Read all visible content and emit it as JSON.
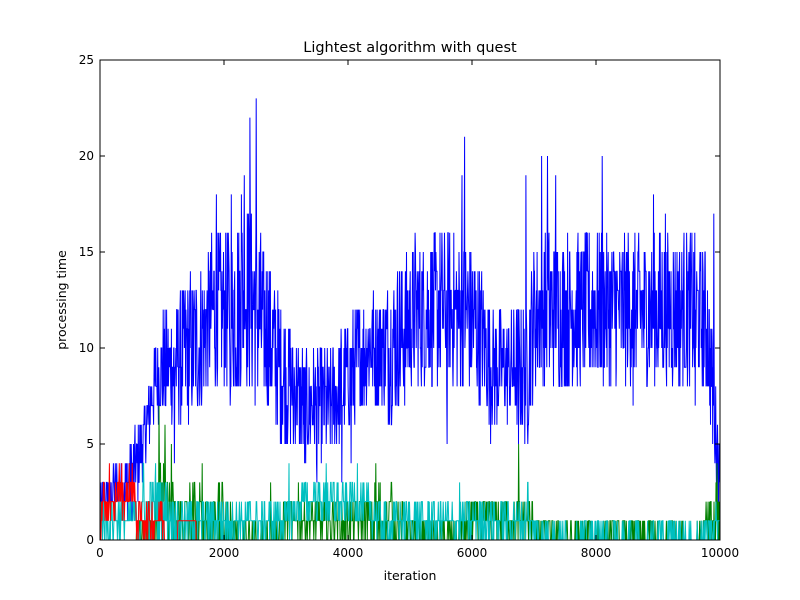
{
  "chart_data": {
    "type": "line",
    "title": "Lightest algorithm with quest",
    "xlabel": "iteration",
    "ylabel": "processing time",
    "xlim": [
      0,
      10000
    ],
    "ylim": [
      0,
      25
    ],
    "x_ticks": [
      "0",
      "2000",
      "4000",
      "6000",
      "8000",
      "10000"
    ],
    "y_ticks": [
      "0",
      "5",
      "10",
      "15",
      "20",
      "25"
    ],
    "grid": false,
    "legend": "none",
    "series": [
      {
        "color": "#0000ff",
        "x": [
          0,
          300,
          500,
          700,
          850,
          1000,
          1200,
          1400,
          1600,
          1800,
          2000,
          2200,
          2350,
          2500,
          2700,
          2900,
          3100,
          3300,
          3500,
          3700,
          3900,
          4100,
          4300,
          4500,
          4700,
          4900,
          5100,
          5300,
          5500,
          5700,
          5900,
          6100,
          6300,
          6500,
          6700,
          6900,
          7000,
          7200,
          7400,
          7600,
          7800,
          8000,
          8200,
          8400,
          8600,
          8800,
          9000,
          9200,
          9400,
          9600,
          9800,
          10000
        ],
        "y": [
          2,
          3,
          3,
          5,
          8,
          9,
          9,
          10,
          10,
          12,
          12,
          12,
          13,
          12,
          11,
          9,
          8,
          7,
          7,
          7,
          8,
          9,
          10,
          10,
          10,
          11,
          12,
          12,
          12,
          12,
          12,
          11,
          9,
          9,
          9,
          9,
          12,
          12,
          12,
          12,
          12,
          12,
          12,
          12,
          12,
          12,
          12,
          12,
          12,
          12,
          11,
          3
        ],
        "spread": [
          1,
          1,
          2,
          2,
          2,
          3,
          3,
          4,
          4,
          4,
          4,
          5,
          5,
          5,
          4,
          4,
          3,
          3,
          3,
          3,
          3,
          3,
          3,
          3,
          4,
          4,
          4,
          4,
          4,
          4,
          4,
          4,
          3,
          3,
          3,
          4,
          4,
          4,
          4,
          4,
          4,
          4,
          4,
          4,
          4,
          4,
          4,
          4,
          4,
          4,
          4,
          2
        ],
        "peaks": [
          [
            2420,
            22
          ],
          [
            2520,
            23
          ],
          [
            2330,
            19
          ],
          [
            2280,
            18
          ],
          [
            5880,
            21
          ],
          [
            5840,
            19
          ],
          [
            6870,
            19
          ],
          [
            7120,
            20
          ],
          [
            7220,
            20
          ],
          [
            7350,
            19
          ],
          [
            8100,
            20
          ],
          [
            8930,
            18
          ],
          [
            9120,
            17
          ],
          [
            9900,
            17
          ],
          [
            2120,
            18
          ],
          [
            1880,
            18
          ]
        ],
        "valleys": [
          [
            3500,
            3
          ],
          [
            3900,
            3
          ],
          [
            3300,
            4
          ],
          [
            4050,
            4
          ],
          [
            3120,
            5
          ],
          [
            5600,
            5
          ],
          [
            6750,
            5
          ],
          [
            6300,
            5
          ],
          [
            2700,
            7
          ],
          [
            2100,
            7
          ],
          [
            1200,
            4
          ],
          [
            8600,
            7
          ],
          [
            9600,
            7
          ],
          [
            10000,
            0
          ]
        ]
      },
      {
        "color": "#008000",
        "x": [
          0,
          500,
          800,
          1000,
          1200,
          1500,
          1800,
          2000,
          2200,
          2500,
          2800,
          3000,
          3300,
          3600,
          3900,
          4200,
          4500,
          4800,
          5100,
          5400,
          5700,
          6000,
          6300,
          6600,
          6900,
          7200,
          7800,
          8400,
          9000,
          9600,
          10000
        ],
        "y": [
          0,
          0,
          1,
          2,
          1,
          1,
          1,
          1,
          0,
          0,
          0,
          1,
          1,
          1,
          1,
          1,
          1,
          1,
          0,
          0,
          0,
          1,
          1,
          1,
          1,
          0,
          0,
          0,
          0,
          0,
          1
        ],
        "spread": [
          0,
          0,
          2,
          2,
          2,
          2,
          2,
          2,
          1,
          1,
          1,
          1,
          1,
          1,
          1,
          1,
          2,
          1,
          1,
          1,
          1,
          1,
          1,
          1,
          1,
          1,
          1,
          1,
          1,
          1,
          2
        ],
        "peaks": [
          [
            950,
            7
          ],
          [
            1050,
            6
          ],
          [
            1150,
            5
          ],
          [
            1650,
            4
          ],
          [
            2750,
            3
          ],
          [
            3200,
            3
          ],
          [
            4450,
            4
          ],
          [
            4700,
            3
          ],
          [
            6750,
            5
          ],
          [
            9950,
            4
          ]
        ],
        "valleys": []
      },
      {
        "color": "#00bfbf",
        "x": [
          0,
          600,
          900,
          1200,
          1500,
          1800,
          2100,
          2400,
          2700,
          3000,
          3300,
          3600,
          3900,
          4200,
          4500,
          4800,
          5100,
          5400,
          5700,
          6000,
          6300,
          6600,
          6900,
          7200,
          7500,
          7800,
          8100,
          8400,
          8700,
          9000,
          9300,
          9600,
          10000
        ],
        "y": [
          1,
          1,
          2,
          1,
          1,
          1,
          1,
          1,
          1,
          1,
          2,
          2,
          2,
          2,
          1,
          1,
          1,
          1,
          1,
          1,
          1,
          1,
          1,
          0,
          0,
          0,
          0,
          0,
          0,
          0,
          0,
          0,
          1
        ],
        "spread": [
          1,
          1,
          2,
          1,
          1,
          1,
          1,
          1,
          1,
          1,
          1,
          1,
          1,
          1,
          1,
          1,
          1,
          1,
          1,
          1,
          1,
          1,
          1,
          1,
          1,
          1,
          1,
          1,
          1,
          1,
          1,
          1,
          1
        ],
        "peaks": [
          [
            700,
            4
          ],
          [
            3050,
            4
          ],
          [
            3650,
            4
          ],
          [
            4150,
            4
          ],
          [
            3450,
            3
          ],
          [
            5800,
            3
          ],
          [
            6900,
            3
          ]
        ],
        "valleys": []
      },
      {
        "color": "#ff0000",
        "x": [
          0,
          100,
          200,
          300,
          400,
          500,
          600,
          900,
          1000,
          1100,
          1400,
          1700,
          2000
        ],
        "y": [
          1,
          2,
          1,
          3,
          2,
          3,
          1,
          1,
          1,
          0,
          1,
          0,
          0
        ],
        "spread": [
          1,
          1,
          1,
          1,
          1,
          1,
          1,
          1,
          1,
          0,
          0,
          0,
          0
        ],
        "peaks": [
          [
            150,
            4
          ],
          [
            350,
            4
          ],
          [
            520,
            4
          ],
          [
            980,
            2
          ],
          [
            1400,
            1
          ]
        ],
        "valleys": []
      }
    ]
  }
}
